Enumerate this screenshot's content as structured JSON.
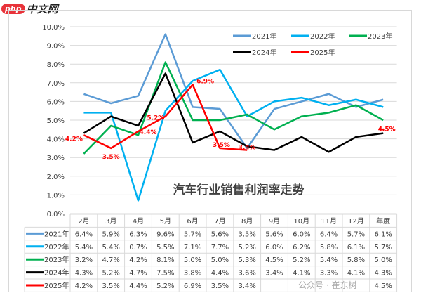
{
  "watermark": {
    "logo_text": "php中文网",
    "account": "公众号 · 崔东树"
  },
  "chart_data": {
    "type": "line",
    "title": "汽车行业销售利润率走势",
    "categories": [
      "2月",
      "3月",
      "4月",
      "5月",
      "6月",
      "7月",
      "8月",
      "9月",
      "10月",
      "11月",
      "12月",
      "年度"
    ],
    "yticks": [
      "0.0%",
      "1.0%",
      "2.0%",
      "3.0%",
      "4.0%",
      "5.0%",
      "6.0%",
      "7.0%",
      "8.0%",
      "9.0%",
      "10.0%"
    ],
    "ylim": [
      0,
      10
    ],
    "grid": true,
    "legend_position": "top-right",
    "series": [
      {
        "name": "2021年",
        "color": "#5b9bd5",
        "values": [
          6.4,
          5.9,
          6.3,
          9.6,
          5.7,
          5.6,
          3.5,
          5.6,
          6.0,
          6.4,
          5.7,
          6.1
        ]
      },
      {
        "name": "2022年",
        "color": "#00b0f0",
        "values": [
          5.4,
          5.4,
          0.7,
          5.5,
          7.1,
          7.7,
          5.2,
          6.0,
          6.2,
          5.8,
          6.1,
          5.7
        ]
      },
      {
        "name": "2023年",
        "color": "#00b050",
        "values": [
          3.2,
          4.7,
          4.2,
          8.1,
          5.0,
          5.0,
          5.3,
          4.5,
          5.2,
          5.4,
          5.8,
          5.0
        ]
      },
      {
        "name": "2024年",
        "color": "#000000",
        "values": [
          4.3,
          5.2,
          4.7,
          7.5,
          3.8,
          4.4,
          3.6,
          3.4,
          4.1,
          3.3,
          4.1,
          4.3
        ]
      },
      {
        "name": "2025年",
        "color": "#ff0000",
        "values": [
          4.2,
          3.5,
          4.4,
          5.2,
          6.9,
          3.5,
          3.4,
          null,
          null,
          null,
          null,
          4.5
        ]
      }
    ],
    "table": [
      [
        "6.4%",
        "5.9%",
        "6.3%",
        "9.6%",
        "5.7%",
        "5.6%",
        "3.5%",
        "5.6%",
        "6.0%",
        "6.4%",
        "5.7%",
        "6.1%"
      ],
      [
        "5.4%",
        "5.4%",
        "0.7%",
        "5.5%",
        "7.1%",
        "7.7%",
        "5.2%",
        "6.0%",
        "6.2%",
        "5.8%",
        "6.1%",
        "5.7%"
      ],
      [
        "3.2%",
        "4.7%",
        "4.2%",
        "8.1%",
        "5.0%",
        "5.0%",
        "5.3%",
        "4.5%",
        "5.2%",
        "5.4%",
        "5.8%",
        "5.0%"
      ],
      [
        "4.3%",
        "5.2%",
        "4.7%",
        "7.5%",
        "3.8%",
        "4.4%",
        "3.6%",
        "3.4%",
        "4.1%",
        "3.3%",
        "4.1%",
        "4.3%"
      ],
      [
        "4.2%",
        "3.5%",
        "4.4%",
        "5.2%",
        "6.9%",
        "3.5%",
        "3.4%",
        "",
        "",
        "",
        "",
        "4.5%"
      ]
    ],
    "data_labels_series": "2025年",
    "data_labels": [
      "4.2%",
      "3.5%",
      "4.4%",
      "5.2%",
      "6.9%",
      "3.5%",
      "3.4%",
      "",
      "",
      "",
      "",
      "4.5%"
    ]
  }
}
